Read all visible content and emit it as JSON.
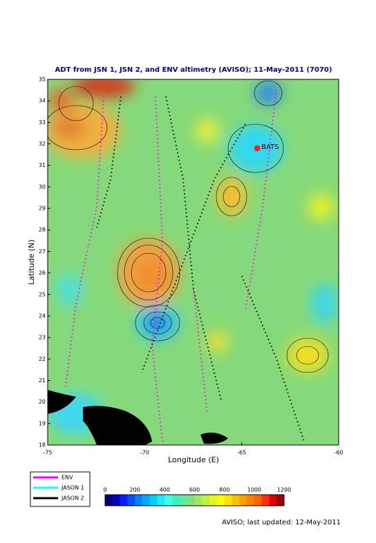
{
  "map": {
    "title": "ADT from JSN 1, JSN 2, and ENV altimetry (AVISO); 11-May-2011 (7070)",
    "xlabel": "Longitude (E)",
    "ylabel": "Latitude (N)",
    "xlim": [
      -75,
      -60
    ],
    "ylim": [
      18,
      35
    ],
    "xticks": [
      -75,
      -70,
      -65,
      -60
    ],
    "yticks": [
      18,
      19,
      20,
      21,
      22,
      23,
      24,
      25,
      26,
      27,
      28,
      29,
      30,
      31,
      32,
      33,
      34,
      35
    ],
    "station": {
      "label": "BATS",
      "lon": -64.2,
      "lat": 31.8
    },
    "legend": [
      {
        "name": "ENV",
        "color": "#ff00ff"
      },
      {
        "name": "JASON 1",
        "color": "#00ffff"
      },
      {
        "name": "JASON 2",
        "color": "#000000"
      }
    ],
    "colorbar": {
      "lim": [
        0,
        1200
      ],
      "ticks": [
        0,
        200,
        400,
        600,
        800,
        1000,
        1200
      ],
      "colors": [
        "#00007f",
        "#0000bf",
        "#0020ff",
        "#0050ff",
        "#0080ff",
        "#00a8ff",
        "#00d0ff",
        "#20e8ff",
        "#40ffe8",
        "#40f0c0",
        "#60e8a0",
        "#80e080",
        "#a0e860",
        "#c0f040",
        "#e0f820",
        "#ffff00",
        "#ffe000",
        "#ffc000",
        "#ffa000",
        "#ff8000",
        "#ff6000",
        "#ff3000",
        "#e00000",
        "#a00000"
      ]
    },
    "footer": "AVISO; last updated: 12-May-2011"
  }
}
